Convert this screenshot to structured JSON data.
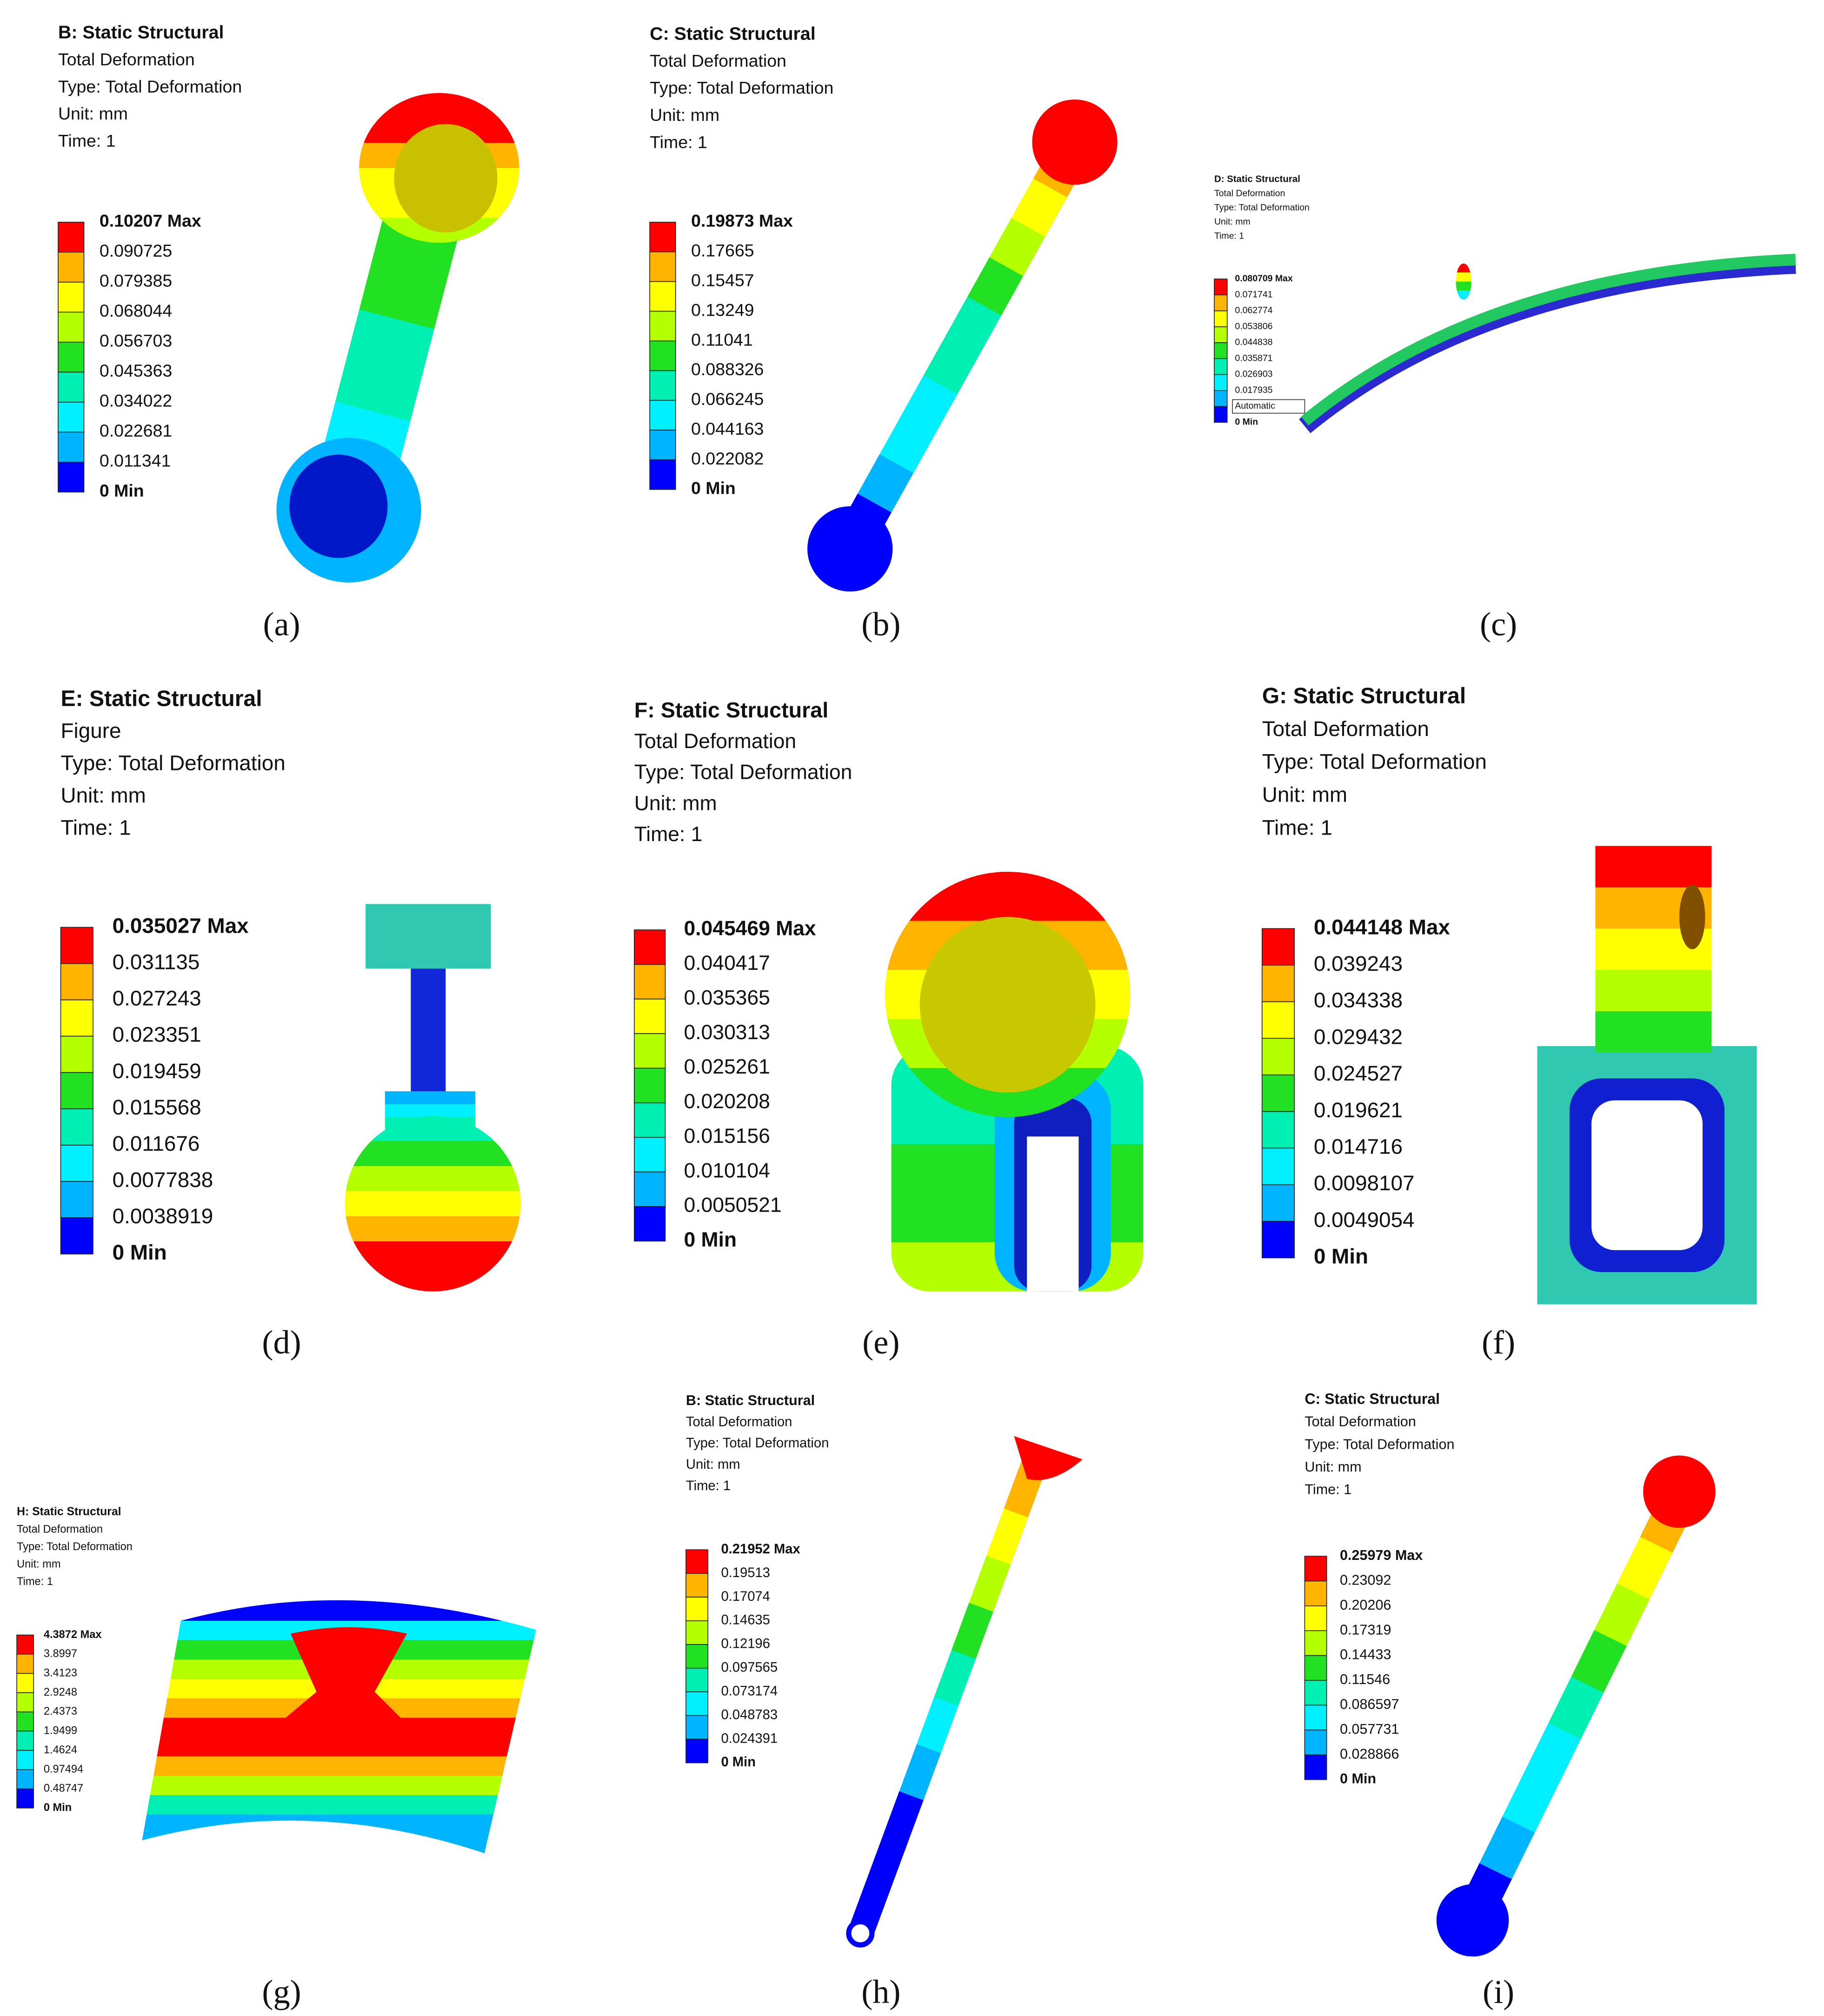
{
  "panels": [
    {
      "title": "B: Static Structural",
      "lines": [
        "Total Deformation",
        "Type: Total Deformation",
        "Unit: mm",
        "Time: 1"
      ],
      "legend": [
        "0.10207 Max",
        "0.090725",
        "0.079385",
        "0.068044",
        "0.056703",
        "0.045363",
        "0.034022",
        "0.022681",
        "0.011341",
        "0 Min"
      ],
      "caption": "(a)"
    },
    {
      "title": "C: Static Structural",
      "lines": [
        "Total Deformation",
        "Type: Total Deformation",
        "Unit: mm",
        "Time: 1"
      ],
      "legend": [
        "0.19873 Max",
        "0.17665",
        "0.15457",
        "0.13249",
        "0.11041",
        "0.088326",
        "0.066245",
        "0.044163",
        "0.022082",
        "0 Min"
      ],
      "caption": "(b)"
    },
    {
      "title": "D: Static Structural",
      "lines": [
        "Total Deformation",
        "Type: Total Deformation",
        "Unit: mm",
        "Time: 1"
      ],
      "legend": [
        "0.080709 Max",
        "0.071741",
        "0.062774",
        "0.053806",
        "0.044838",
        "0.035871",
        "0.026903",
        "0.017935",
        "Automatic",
        "0 Min"
      ],
      "caption": "(c)"
    },
    {
      "title": "E: Static Structural",
      "lines": [
        "Figure",
        "Type: Total Deformation",
        "Unit: mm",
        "Time: 1"
      ],
      "legend": [
        "0.035027 Max",
        "0.031135",
        "0.027243",
        "0.023351",
        "0.019459",
        "0.015568",
        "0.011676",
        "0.0077838",
        "0.0038919",
        "0 Min"
      ],
      "caption": "(d)"
    },
    {
      "title": "F: Static Structural",
      "lines": [
        "Total Deformation",
        "Type: Total Deformation",
        "Unit: mm",
        "Time: 1"
      ],
      "legend": [
        "0.045469 Max",
        "0.040417",
        "0.035365",
        "0.030313",
        "0.025261",
        "0.020208",
        "0.015156",
        "0.010104",
        "0.0050521",
        "0 Min"
      ],
      "caption": "(e)"
    },
    {
      "title": "G: Static Structural",
      "lines": [
        "Total Deformation",
        "Type: Total Deformation",
        "Unit: mm",
        "Time: 1"
      ],
      "legend": [
        "0.044148 Max",
        "0.039243",
        "0.034338",
        "0.029432",
        "0.024527",
        "0.019621",
        "0.014716",
        "0.0098107",
        "0.0049054",
        "0 Min"
      ],
      "caption": "(f)"
    },
    {
      "title": "H: Static Structural",
      "lines": [
        "Total Deformation",
        "Type: Total Deformation",
        "Unit: mm",
        "Time: 1"
      ],
      "legend": [
        "4.3872 Max",
        "3.8997",
        "3.4123",
        "2.9248",
        "2.4373",
        "1.9499",
        "1.4624",
        "0.97494",
        "0.48747",
        "0 Min"
      ],
      "caption": "(g)"
    },
    {
      "title": "B: Static Structural",
      "lines": [
        "Total Deformation",
        "Type: Total Deformation",
        "Unit: mm",
        "Time: 1"
      ],
      "legend": [
        "0.21952 Max",
        "0.19513",
        "0.17074",
        "0.14635",
        "0.12196",
        "0.097565",
        "0.073174",
        "0.048783",
        "0.024391",
        "0 Min"
      ],
      "caption": "(h)"
    },
    {
      "title": "C: Static Structural",
      "lines": [
        "Total Deformation",
        "Type: Total Deformation",
        "Unit: mm",
        "Time: 1"
      ],
      "legend": [
        "0.25979 Max",
        "0.23092",
        "0.20206",
        "0.17319",
        "0.14433",
        "0.11546",
        "0.086597",
        "0.057731",
        "0.028866",
        "0 Min"
      ],
      "caption": "(i)"
    }
  ]
}
